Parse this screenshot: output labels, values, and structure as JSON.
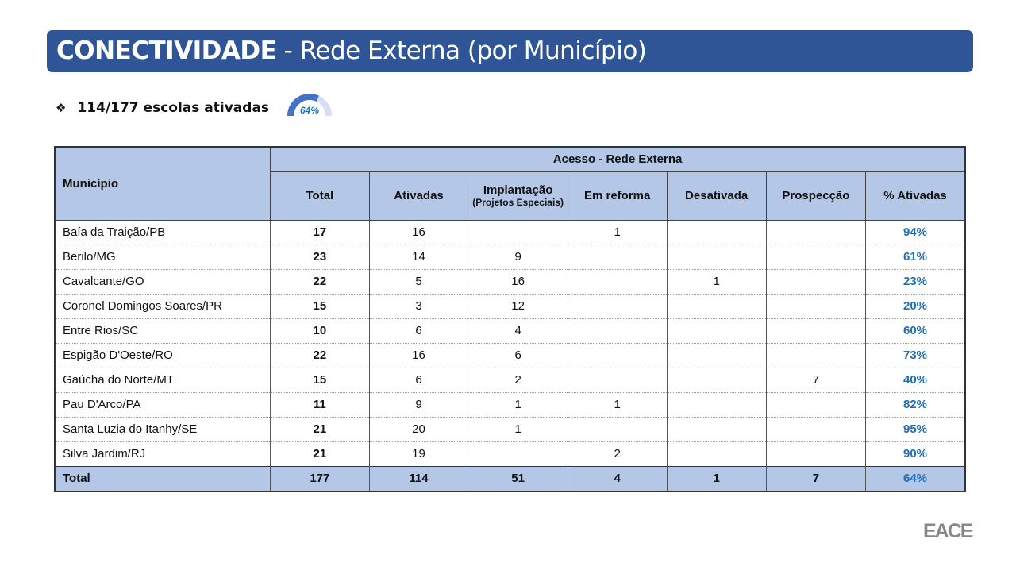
{
  "title": {
    "bold": "CONECTIVIDADE",
    "rest": " - Rede Externa (por Município)"
  },
  "summary": {
    "text": "114/177 escolas ativadas",
    "gauge_label": "64%",
    "gauge_value": 0.64,
    "gauge_color": "#4472c4",
    "gauge_track": "#d6e0f2"
  },
  "table": {
    "municipio_header": "Município",
    "group_header": "Acesso - Rede Externa",
    "columns": [
      "Total",
      "Ativadas",
      "Implantação",
      "Em reforma",
      "Desativada",
      "Prospecção",
      "% Ativadas"
    ],
    "implantacao_sub": "(Projetos Especiais)",
    "rows": [
      [
        "Baía da Traição/PB",
        "17",
        "16",
        "",
        "1",
        "",
        "",
        "94%"
      ],
      [
        "Berilo/MG",
        "23",
        "14",
        "9",
        "",
        "",
        "",
        "61%"
      ],
      [
        "Cavalcante/GO",
        "22",
        "5",
        "16",
        "",
        "1",
        "",
        "23%"
      ],
      [
        "Coronel Domingos Soares/PR",
        "15",
        "3",
        "12",
        "",
        "",
        "",
        "20%"
      ],
      [
        "Entre Rios/SC",
        "10",
        "6",
        "4",
        "",
        "",
        "",
        "60%"
      ],
      [
        "Espigão D'Oeste/RO",
        "22",
        "16",
        "6",
        "",
        "",
        "",
        "73%"
      ],
      [
        "Gaúcha do Norte/MT",
        "15",
        "6",
        "2",
        "",
        "",
        "7",
        "40%"
      ],
      [
        "Pau D'Arco/PA",
        "11",
        "9",
        "1",
        "1",
        "",
        "",
        "82%"
      ],
      [
        "Santa Luzia do Itanhy/SE",
        "21",
        "20",
        "1",
        "",
        "",
        "",
        "95%"
      ],
      [
        "Silva Jardim/RJ",
        "21",
        "19",
        "",
        "2",
        "",
        "",
        "90%"
      ]
    ],
    "total": [
      "Total",
      "177",
      "114",
      "51",
      "4",
      "1",
      "7",
      "64%"
    ]
  },
  "logo": "EACE"
}
